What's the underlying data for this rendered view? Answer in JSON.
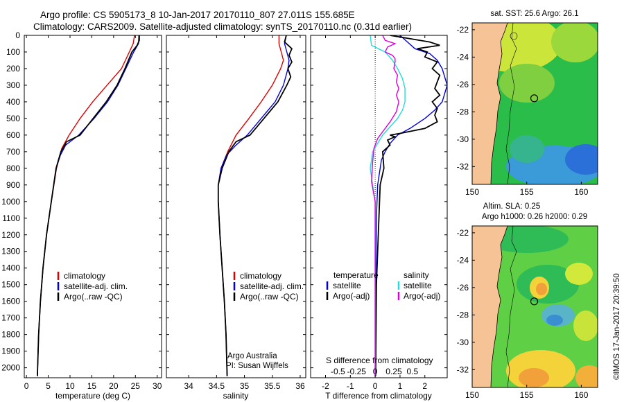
{
  "header": {
    "title_line1": "Argo profile: CS 5905173_8 10-Jan-2017 20170110_807 27.011S 155.685E",
    "title_line2": "Climatology: CARS2009. Satellite-adjusted climatology: synTS_20170110.nc (0.31d earlier)"
  },
  "colors": {
    "climatology": "#dd0000",
    "satellite": "#0000dd",
    "argo": "#000000",
    "sat_salinity": "#22dddd",
    "argo_salinity_adj": "#dd00dd",
    "land": "#f6c396"
  },
  "chart_data": [
    {
      "type": "line",
      "name": "temperature-profile",
      "xlabel": "temperature (deg C)",
      "xlim": [
        -0.5,
        31
      ],
      "xticks": [
        0,
        5,
        10,
        15,
        20,
        25,
        30
      ],
      "ylim": [
        0,
        2060
      ],
      "yticks": [
        0,
        100,
        200,
        300,
        400,
        500,
        600,
        700,
        800,
        900,
        1000,
        1100,
        1200,
        1300,
        1400,
        1500,
        1600,
        1700,
        1800,
        1900,
        2000
      ],
      "legend": [
        "climatology",
        "satellite-adj. clim.",
        "Argo(..raw -QC)"
      ],
      "series": [
        {
          "name": "climatology",
          "color": "#dd0000",
          "points": [
            [
              24.8,
              0
            ],
            [
              24.5,
              50
            ],
            [
              23.6,
              100
            ],
            [
              21.8,
              200
            ],
            [
              18.5,
              300
            ],
            [
              15.2,
              400
            ],
            [
              12.3,
              500
            ],
            [
              9.8,
              600
            ],
            [
              8.1,
              680
            ],
            [
              6.9,
              800
            ],
            [
              5.7,
              1000
            ],
            [
              4.6,
              1200
            ],
            [
              3.8,
              1400
            ],
            [
              3.2,
              1600
            ],
            [
              2.8,
              1800
            ],
            [
              2.5,
              2050
            ]
          ]
        },
        {
          "name": "satellite",
          "color": "#0000dd",
          "points": [
            [
              25.8,
              0
            ],
            [
              25.7,
              50
            ],
            [
              24.6,
              100
            ],
            [
              22.8,
              200
            ],
            [
              21.0,
              300
            ],
            [
              18.6,
              400
            ],
            [
              15.5,
              500
            ],
            [
              12.0,
              600
            ],
            [
              9.0,
              660
            ],
            [
              7.8,
              720
            ],
            [
              6.8,
              800
            ],
            [
              5.7,
              1000
            ],
            [
              4.6,
              1200
            ],
            [
              3.8,
              1400
            ],
            [
              3.2,
              1600
            ],
            [
              2.8,
              1800
            ],
            [
              2.5,
              2050
            ]
          ]
        },
        {
          "name": "Argo",
          "color": "#000000",
          "points": [
            [
              25.9,
              0
            ],
            [
              25.9,
              30
            ],
            [
              25.4,
              60
            ],
            [
              24.2,
              100
            ],
            [
              22.6,
              200
            ],
            [
              20.8,
              300
            ],
            [
              18.3,
              400
            ],
            [
              15.3,
              500
            ],
            [
              12.3,
              600
            ],
            [
              9.2,
              640
            ],
            [
              7.9,
              700
            ],
            [
              6.8,
              800
            ],
            [
              5.7,
              1000
            ],
            [
              4.6,
              1200
            ],
            [
              3.8,
              1400
            ],
            [
              3.2,
              1600
            ],
            [
              2.8,
              1800
            ],
            [
              2.5,
              2050
            ]
          ]
        }
      ]
    },
    {
      "type": "line",
      "name": "salinity-profile",
      "xlabel": "salinity",
      "xlim": [
        33.6,
        36.1
      ],
      "xticks": [
        34,
        34.5,
        35,
        35.5,
        36
      ],
      "xtick_labels": [
        "34",
        "34.5",
        "35",
        "35.5",
        "36"
      ],
      "ylim": [
        0,
        2060
      ],
      "legend": [
        "climatology",
        "satellite-adj. clim.",
        "Argo(..raw -QC)"
      ],
      "annotation": [
        "Argo Australia",
        "PI: Susan Wijffels"
      ],
      "series": [
        {
          "name": "climatology",
          "color": "#dd0000",
          "points": [
            [
              35.62,
              0
            ],
            [
              35.62,
              50
            ],
            [
              35.66,
              100
            ],
            [
              35.7,
              150
            ],
            [
              35.65,
              200
            ],
            [
              35.5,
              300
            ],
            [
              35.3,
              400
            ],
            [
              35.08,
              500
            ],
            [
              34.85,
              600
            ],
            [
              34.7,
              700
            ],
            [
              34.58,
              800
            ],
            [
              34.53,
              900
            ],
            [
              34.53,
              1000
            ],
            [
              34.56,
              1200
            ],
            [
              34.6,
              1400
            ],
            [
              34.64,
              1600
            ],
            [
              34.67,
              1800
            ],
            [
              34.69,
              2050
            ]
          ]
        },
        {
          "name": "satellite",
          "color": "#0000dd",
          "points": [
            [
              35.75,
              0
            ],
            [
              35.72,
              50
            ],
            [
              35.76,
              100
            ],
            [
              35.8,
              150
            ],
            [
              35.78,
              200
            ],
            [
              35.7,
              300
            ],
            [
              35.55,
              400
            ],
            [
              35.3,
              500
            ],
            [
              35.05,
              600
            ],
            [
              34.85,
              660
            ],
            [
              34.68,
              720
            ],
            [
              34.58,
              800
            ],
            [
              34.53,
              900
            ],
            [
              34.53,
              1000
            ],
            [
              34.56,
              1200
            ],
            [
              34.6,
              1400
            ],
            [
              34.64,
              1600
            ],
            [
              34.67,
              1800
            ],
            [
              34.69,
              2050
            ]
          ]
        },
        {
          "name": "Argo",
          "color": "#000000",
          "points": [
            [
              35.75,
              0
            ],
            [
              35.72,
              40
            ],
            [
              35.85,
              80
            ],
            [
              35.8,
              120
            ],
            [
              35.85,
              160
            ],
            [
              35.78,
              200
            ],
            [
              35.83,
              250
            ],
            [
              35.76,
              300
            ],
            [
              35.6,
              400
            ],
            [
              35.35,
              500
            ],
            [
              35.1,
              600
            ],
            [
              34.85,
              640
            ],
            [
              34.72,
              700
            ],
            [
              34.6,
              800
            ],
            [
              34.53,
              900
            ],
            [
              34.53,
              1000
            ],
            [
              34.56,
              1200
            ],
            [
              34.6,
              1400
            ],
            [
              34.64,
              1600
            ],
            [
              34.67,
              1800
            ],
            [
              34.69,
              2050
            ]
          ]
        }
      ]
    },
    {
      "type": "line",
      "name": "difference-profile",
      "xlabel": "T difference from climatology",
      "xlabel_top": "S difference from climatology",
      "xlim": [
        -2.6,
        2.9
      ],
      "xticks": [
        -2,
        -1,
        0,
        1,
        2
      ],
      "xtick_labels": [
        "-2",
        "-1",
        "0",
        "1",
        "2"
      ],
      "sticks": [
        -1.5,
        -0.75,
        0,
        0.75,
        1.5
      ],
      "stick_labels": [
        "-0.5",
        "-0.25",
        "0",
        "0.25",
        "0.5"
      ],
      "ylim": [
        0,
        2060
      ],
      "legend_temperature": [
        "temperature",
        "satellite",
        "Argo(-adj)"
      ],
      "legend_salinity": [
        "salinity",
        "satellite",
        "Argo(-adj)"
      ],
      "series": [
        {
          "name": "T satellite",
          "color": "#0000dd",
          "points": [
            [
              1.0,
              0
            ],
            [
              1.3,
              40
            ],
            [
              1.6,
              80
            ],
            [
              2.2,
              110
            ],
            [
              2.5,
              150
            ],
            [
              2.7,
              200
            ],
            [
              2.9,
              300
            ],
            [
              2.7,
              400
            ],
            [
              2.4,
              450
            ],
            [
              2.0,
              500
            ],
            [
              1.4,
              560
            ],
            [
              0.9,
              600
            ],
            [
              0.6,
              650
            ],
            [
              0.4,
              700
            ],
            [
              0.25,
              750
            ],
            [
              0.1,
              900
            ],
            [
              0.05,
              1100
            ],
            [
              0.02,
              1500
            ],
            [
              0,
              2050
            ]
          ]
        },
        {
          "name": "T Argo",
          "color": "#000000",
          "points": [
            [
              0.6,
              0
            ],
            [
              2.2,
              40
            ],
            [
              2.6,
              60
            ],
            [
              1.7,
              80
            ],
            [
              2.1,
              100
            ],
            [
              2.0,
              130
            ],
            [
              2.5,
              160
            ],
            [
              2.3,
              200
            ],
            [
              2.6,
              240
            ],
            [
              2.5,
              280
            ],
            [
              2.4,
              320
            ],
            [
              2.6,
              360
            ],
            [
              2.3,
              400
            ],
            [
              2.5,
              440
            ],
            [
              2.4,
              480
            ],
            [
              2.5,
              520
            ],
            [
              2.0,
              560
            ],
            [
              1.0,
              590
            ],
            [
              0.6,
              600
            ],
            [
              0.8,
              610
            ],
            [
              0.5,
              630
            ],
            [
              0.6,
              660
            ],
            [
              0.3,
              700
            ],
            [
              0.35,
              800
            ],
            [
              0.2,
              900
            ],
            [
              0.15,
              1100
            ],
            [
              0.1,
              1300
            ],
            [
              0.05,
              1500
            ],
            [
              0.02,
              2050
            ]
          ]
        },
        {
          "name": "S satellite",
          "color": "#22dddd",
          "points": [
            [
              -0.2,
              0
            ],
            [
              -0.15,
              60
            ],
            [
              0.4,
              100
            ],
            [
              0.7,
              150
            ],
            [
              0.9,
              200
            ],
            [
              1.1,
              260
            ],
            [
              1.2,
              320
            ],
            [
              1.2,
              400
            ],
            [
              1.1,
              450
            ],
            [
              0.9,
              500
            ],
            [
              0.6,
              550
            ],
            [
              0.3,
              600
            ],
            [
              0.1,
              650
            ],
            [
              -0.1,
              700
            ],
            [
              -0.2,
              800
            ],
            [
              -0.1,
              900
            ],
            [
              0.0,
              1000
            ],
            [
              0.0,
              1500
            ],
            [
              0.0,
              2050
            ]
          ]
        },
        {
          "name": "S Argo",
          "color": "#dd00dd",
          "points": [
            [
              0.3,
              0
            ],
            [
              0.4,
              30
            ],
            [
              0.8,
              50
            ],
            [
              0.5,
              70
            ],
            [
              0.4,
              100
            ],
            [
              0.7,
              120
            ],
            [
              0.8,
              140
            ],
            [
              0.8,
              160
            ],
            [
              0.75,
              200
            ],
            [
              0.9,
              240
            ],
            [
              0.85,
              280
            ],
            [
              0.95,
              320
            ],
            [
              0.85,
              360
            ],
            [
              0.95,
              400
            ],
            [
              0.85,
              460
            ],
            [
              0.6,
              520
            ],
            [
              0.3,
              580
            ],
            [
              0.1,
              620
            ],
            [
              -0.05,
              680
            ],
            [
              -0.1,
              760
            ],
            [
              -0.15,
              880
            ],
            [
              -0.05,
              960
            ],
            [
              0,
              1000
            ],
            [
              0,
              2050
            ]
          ]
        }
      ]
    },
    {
      "type": "heatmap",
      "name": "sst-map",
      "title": "sat. SST: 25.6  Argo: 26.1",
      "xlim": [
        150,
        161.5
      ],
      "ylim": [
        -33.3,
        -21.5
      ],
      "xticks": [
        150,
        155,
        160
      ],
      "yticks": [
        -22,
        -24,
        -26,
        -28,
        -30,
        -32
      ],
      "argo_position": [
        155.685,
        -27.011
      ]
    },
    {
      "type": "heatmap",
      "name": "sla-map",
      "title_line1": "Altim. SLA: 0.25",
      "title_line2": "Argo h1000: 0.26 h2000: 0.29",
      "xlim": [
        150,
        161.5
      ],
      "ylim": [
        -33.3,
        -21.5
      ],
      "xticks": [
        150,
        155,
        160
      ],
      "yticks": [
        -22,
        -24,
        -26,
        -28,
        -30,
        -32
      ],
      "argo_position": [
        155.685,
        -27.011
      ]
    }
  ],
  "credit": "©IMOS 17-Jan-2017 20:39:50"
}
